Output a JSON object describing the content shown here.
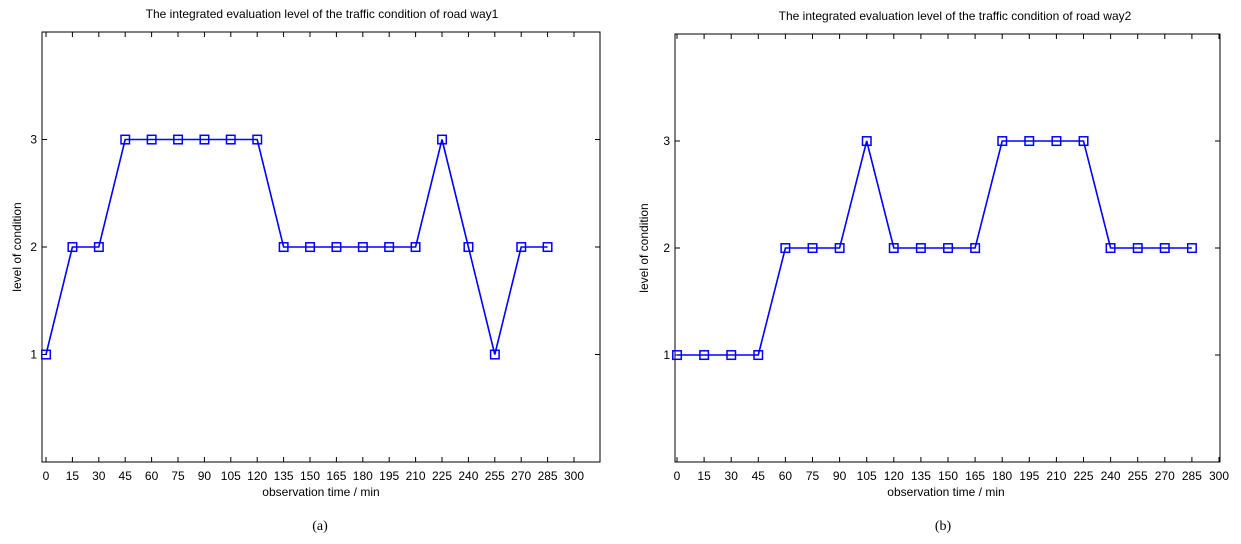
{
  "chart_data": [
    {
      "type": "line",
      "title": "The integrated evaluation level of the traffic condition of road way1",
      "xlabel": "observation time / min",
      "ylabel": "level of condition",
      "caption": "(a)",
      "xlim": [
        0,
        300
      ],
      "ylim": [
        0,
        4
      ],
      "xticks": [
        0,
        15,
        30,
        45,
        60,
        75,
        90,
        105,
        120,
        135,
        150,
        165,
        180,
        195,
        210,
        225,
        240,
        255,
        270,
        285,
        300
      ],
      "yticks": [
        1,
        2,
        3
      ],
      "grid": false,
      "marker": "square",
      "color": "#0000ff",
      "x": [
        0,
        15,
        30,
        45,
        60,
        75,
        90,
        105,
        120,
        135,
        150,
        165,
        180,
        195,
        210,
        225,
        240,
        255,
        270,
        285
      ],
      "values": [
        1,
        2,
        2,
        3,
        3,
        3,
        3,
        3,
        3,
        2,
        2,
        2,
        2,
        2,
        2,
        3,
        2,
        1,
        2,
        2
      ]
    },
    {
      "type": "line",
      "title": "The integrated evaluation level of the traffic condition of road way2",
      "xlabel": "observation time / min",
      "ylabel": "level of condition",
      "caption": "(b)",
      "xlim": [
        0,
        300
      ],
      "ylim": [
        0,
        4
      ],
      "xticks": [
        0,
        15,
        30,
        45,
        60,
        75,
        90,
        105,
        120,
        135,
        150,
        165,
        180,
        195,
        210,
        225,
        240,
        255,
        270,
        285,
        300
      ],
      "yticks": [
        1,
        2,
        3
      ],
      "grid": false,
      "marker": "square",
      "color": "#0000ff",
      "x": [
        0,
        15,
        30,
        45,
        60,
        75,
        90,
        105,
        120,
        135,
        150,
        165,
        180,
        195,
        210,
        225,
        240,
        255,
        270,
        285
      ],
      "values": [
        1,
        1,
        1,
        1,
        2,
        2,
        2,
        3,
        2,
        2,
        2,
        2,
        3,
        3,
        3,
        3,
        2,
        2,
        2,
        2
      ]
    }
  ]
}
